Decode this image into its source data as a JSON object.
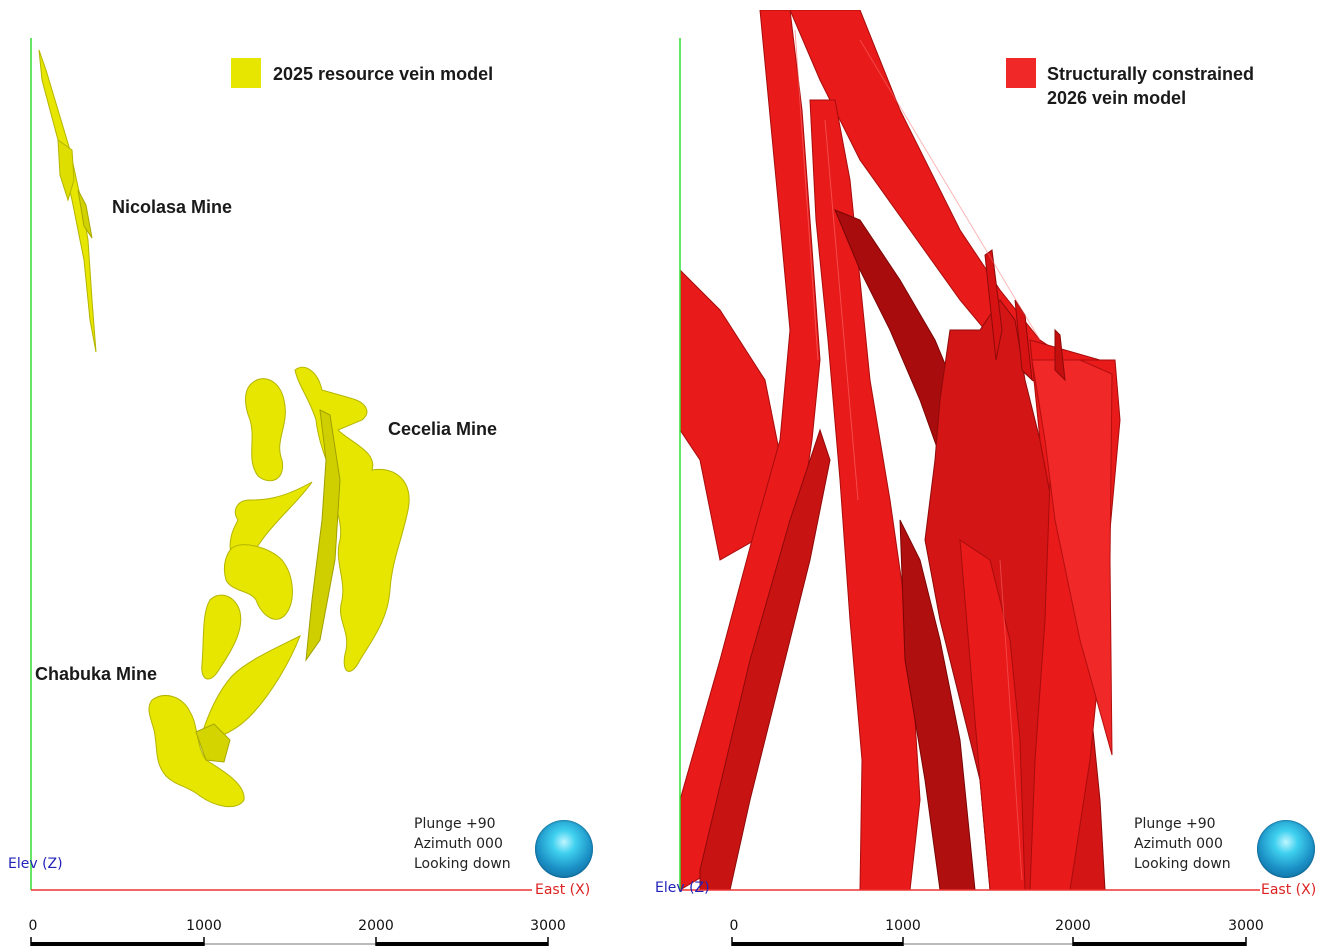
{
  "left_panel": {
    "legend": {
      "label": "2025 resource vein model",
      "color": "#e6e600"
    },
    "annotations": {
      "nicolasa": "Nicolasa Mine",
      "cecelia": "Cecelia Mine",
      "chabuka": "Chabuka Mine"
    },
    "orientation": {
      "plunge": "Plunge +90",
      "azimuth": "Azimuth 000",
      "looking": "Looking down"
    },
    "axes": {
      "vertical": "Elev (Z)",
      "horizontal": "East (X)"
    },
    "scale_ticks": [
      "0",
      "1000",
      "2000",
      "3000"
    ]
  },
  "right_panel": {
    "legend": {
      "label_line1": "Structurally constrained",
      "label_line2": "2026 vein model",
      "color": "#f02828"
    },
    "orientation": {
      "plunge": "Plunge +90",
      "azimuth": "Azimuth 000",
      "looking": "Looking down"
    },
    "axes": {
      "vertical": "Elev (Z)",
      "horizontal": "East (X)"
    },
    "scale_ticks": [
      "0",
      "1000",
      "2000",
      "3000"
    ]
  },
  "colors": {
    "vertical_axis": "#33dd33",
    "horizontal_axis": "#ee3333",
    "vertical_axis_label": "#2222bb",
    "horizontal_axis_label": "#dd2222",
    "yellow_fill": "#e6e600",
    "yellow_shade": "#b5b500",
    "red_fill": "#e81a1a",
    "red_shade": "#a80c0c"
  }
}
